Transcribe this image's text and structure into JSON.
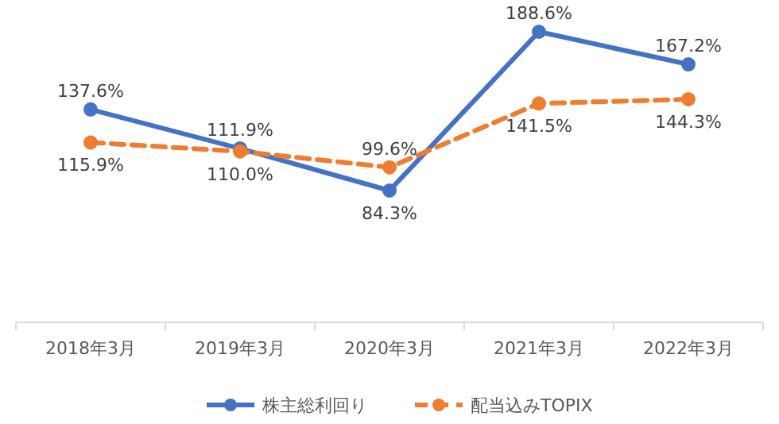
{
  "chart_data": {
    "type": "line",
    "categories": [
      "2018年3月",
      "2019年3月",
      "2020年3月",
      "2021年3月",
      "2022年3月"
    ],
    "series": [
      {
        "name": "株主総利回り",
        "color": "#4472c4",
        "values": [
          137.6,
          111.9,
          84.3,
          188.6,
          167.2
        ],
        "value_labels": [
          "137.6%",
          "111.9%",
          "84.3%",
          "188.6%",
          "167.2%"
        ],
        "line_style": "solid"
      },
      {
        "name": "配当込みTOPIX",
        "color": "#ed7d31",
        "values": [
          115.9,
          110.0,
          99.6,
          141.5,
          144.3
        ],
        "value_labels": [
          "115.9%",
          "110.0%",
          "99.6%",
          "141.5%",
          "144.3%"
        ],
        "line_style": "dashed"
      }
    ],
    "legend": "bottom",
    "marker": "circle"
  }
}
